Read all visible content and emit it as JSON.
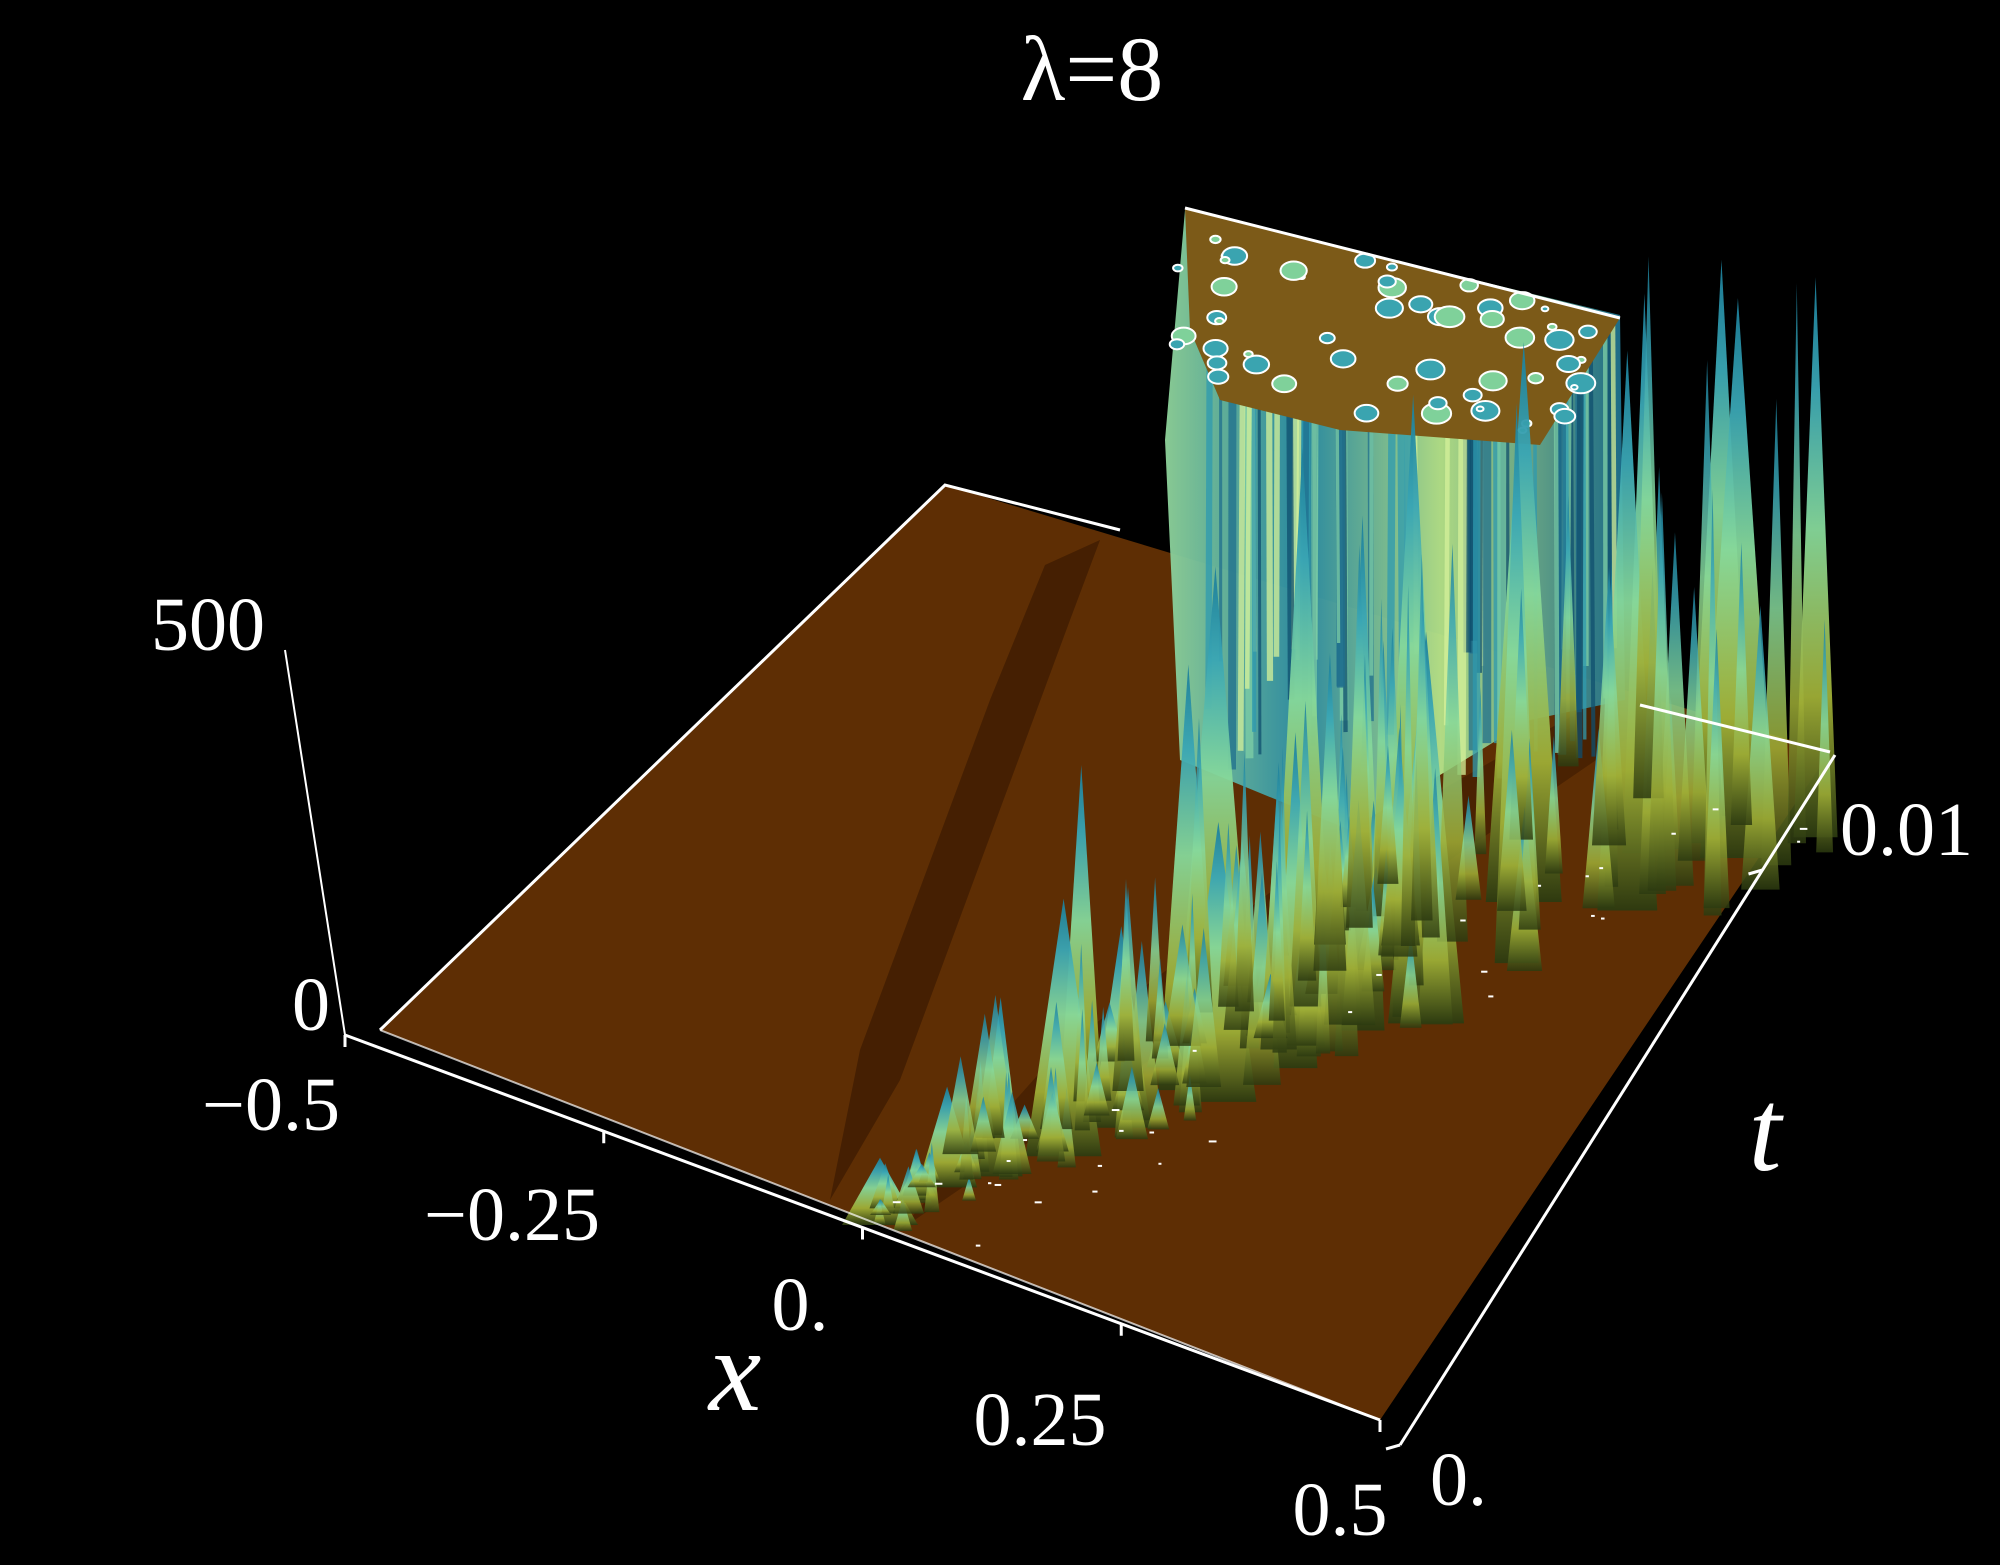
{
  "chart_data": {
    "type": "surface3d",
    "title": "λ=8",
    "xlabel": "x",
    "ylabel": "t",
    "zlabel": "",
    "x_range": [
      -0.5,
      0.5
    ],
    "t_range": [
      0,
      0.012
    ],
    "z_range": [
      0,
      500
    ],
    "x_ticks": [
      "−0.5",
      "−0.25",
      "0.",
      "0.25",
      "0.5"
    ],
    "x_tick_values": [
      -0.5,
      -0.25,
      0,
      0.25,
      0.5
    ],
    "t_ticks": [
      "0.",
      "0.01"
    ],
    "t_tick_values": [
      0,
      0.01
    ],
    "z_ticks": [
      "0",
      "500"
    ],
    "z_tick_values": [
      0,
      500
    ],
    "clipped_at": 500,
    "colors": {
      "background": "#000000",
      "floor": "#5e2e04",
      "low": "#7a4a10",
      "mid": "#a8b83a",
      "high": "#7fd9a0",
      "deep": "#1a7f9a",
      "axis": "#ffffff"
    },
    "description_peaks": [
      {
        "x": 0.0,
        "t": 0.0,
        "z": 60
      },
      {
        "x": 0.02,
        "t": 0.001,
        "z": 90
      },
      {
        "x": 0.05,
        "t": 0.0015,
        "z": 160
      },
      {
        "x": 0.08,
        "t": 0.0022,
        "z": 230
      },
      {
        "x": 0.06,
        "t": 0.003,
        "z": 310
      },
      {
        "x": 0.1,
        "t": 0.003,
        "z": 180
      },
      {
        "x": 0.12,
        "t": 0.004,
        "z": 380
      },
      {
        "x": 0.15,
        "t": 0.004,
        "z": 250
      },
      {
        "x": 0.1,
        "t": 0.005,
        "z": 420
      },
      {
        "x": 0.18,
        "t": 0.005,
        "z": 300
      },
      {
        "x": 0.2,
        "t": 0.006,
        "z": 460
      },
      {
        "x": 0.14,
        "t": 0.006,
        "z": 500
      },
      {
        "x": 0.24,
        "t": 0.0065,
        "z": 350
      },
      {
        "x": 0.18,
        "t": 0.0075,
        "z": 500
      },
      {
        "x": 0.26,
        "t": 0.008,
        "z": 500
      },
      {
        "x": 0.22,
        "t": 0.009,
        "z": 500
      },
      {
        "x": 0.3,
        "t": 0.0095,
        "z": 500
      },
      {
        "x": 0.27,
        "t": 0.0105,
        "z": 500
      },
      {
        "x": 0.34,
        "t": 0.011,
        "z": 500
      },
      {
        "x": 0.3,
        "t": 0.0115,
        "z": 500
      },
      {
        "x": 0.38,
        "t": 0.0118,
        "z": 500
      }
    ]
  }
}
